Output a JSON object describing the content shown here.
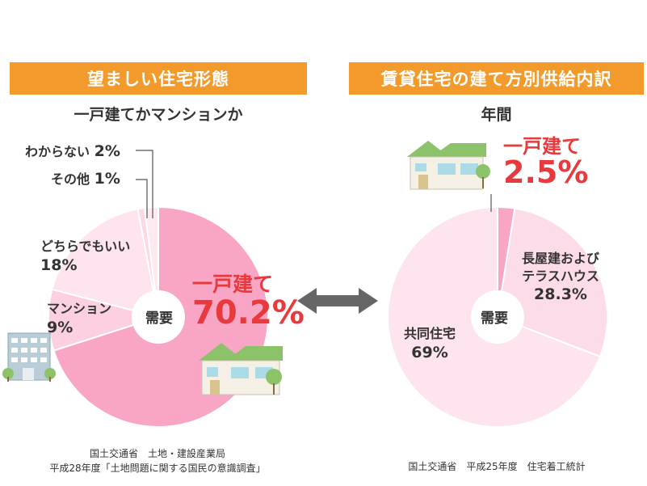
{
  "chart_data": [
    {
      "type": "pie",
      "title": "望ましい住宅形態",
      "subtitle": "一戸建てかマンションか",
      "center_label": "需要",
      "slices": [
        {
          "label": "一戸建て",
          "value": 70.2,
          "value_label": "70.2%",
          "color": "#f9a6c6"
        },
        {
          "label": "マンション",
          "value": 9,
          "value_label": "9%",
          "color": "#fcd0e0"
        },
        {
          "label": "どちらでもいい",
          "value": 18,
          "value_label": "18%",
          "color": "#fde4ee"
        },
        {
          "label": "その他",
          "value": 1,
          "value_label": "1%",
          "color": "#fcd7e5"
        },
        {
          "label": "わからない",
          "value": 2,
          "value_label": "2%",
          "color": "#fde9f0"
        }
      ],
      "source_lines": [
        "国土交通省　土地・建設産業局",
        "平成28年度「土地問題に関する国民の意識調査」"
      ]
    },
    {
      "type": "pie",
      "title": "賃貸住宅の建て方別供給内訳",
      "subtitle": "年間",
      "center_label": "需要",
      "slices": [
        {
          "label": "一戸建て",
          "value": 2.5,
          "value_label": "2.5%",
          "color": "#f9a6c6"
        },
        {
          "label": "長屋建および テラスハウス",
          "value": 28.3,
          "value_label": "28.3%",
          "color": "#fcdce8"
        },
        {
          "label": "共同住宅",
          "value": 69,
          "value_label": "69%",
          "color": "#fde4ee"
        }
      ],
      "source_lines": [
        "国土交通省　平成25年度　住宅着工統計"
      ]
    }
  ],
  "labels": {
    "left": {
      "wakaranai": "わからない",
      "wakaranai_pct": "2%",
      "sonota": "その他",
      "sonota_pct": "1%",
      "dochira": "どちらでもいい",
      "dochira_pct": "18%",
      "mansion": "マンション",
      "mansion_pct": "9%",
      "ikkodate": "一戸建て",
      "ikkodate_pct": "70.2%"
    },
    "right": {
      "ikkodate": "一戸建て",
      "ikkodate_pct": "2.5%",
      "nagaya_1": "長屋建および",
      "nagaya_2": "テラスハウス",
      "nagaya_pct": "28.3%",
      "kyodo": "共同住宅",
      "kyodo_pct": "69%"
    }
  },
  "icons": {
    "house": "house-icon",
    "apartment": "apartment-building-icon",
    "arrow": "double-arrow-icon"
  },
  "colors": {
    "banner": "#f39a2c",
    "accent_red": "#e8393c",
    "arrow": "#666666"
  }
}
